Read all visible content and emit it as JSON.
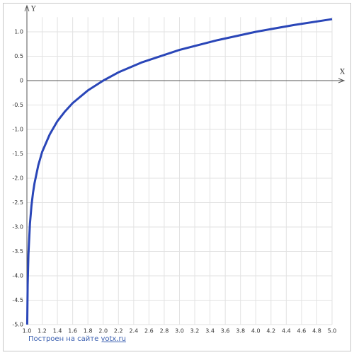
{
  "chart_data": {
    "type": "line",
    "x_label": "X",
    "y_label": "Y",
    "x": [
      1.0041,
      1.01,
      1.02,
      1.04,
      1.06,
      1.08,
      1.1,
      1.15,
      1.2,
      1.3,
      1.4,
      1.5,
      1.6,
      1.8,
      2.0,
      2.2,
      2.5,
      3.0,
      3.5,
      4.0,
      4.5,
      5.0
    ],
    "series": [
      {
        "color": "#2a46b8",
        "values": [
          -5.0,
          -4.19,
          -3.56,
          -2.93,
          -2.56,
          -2.3,
          -2.1,
          -1.73,
          -1.46,
          -1.1,
          -0.83,
          -0.63,
          -0.46,
          -0.2,
          0,
          0.17,
          0.37,
          0.63,
          0.83,
          1.0,
          1.14,
          1.26
        ]
      }
    ],
    "xlim": [
      1,
      5
    ],
    "ylim": [
      -5,
      1.3
    ],
    "xticks": [
      {
        "value": 1,
        "label": "1.0"
      },
      1.2,
      1.4,
      1.6,
      1.8,
      {
        "value": 2,
        "label": "2.0"
      },
      2.2,
      2.4,
      2.6,
      2.8,
      {
        "value": 3,
        "label": "3.0"
      },
      3.2,
      3.4,
      3.6,
      3.8,
      {
        "value": 4,
        "label": "4.0"
      },
      4.2,
      4.4,
      4.6,
      4.8,
      {
        "value": 5,
        "label": "5.0"
      }
    ],
    "yticks": [
      {
        "value": 1,
        "label": "1.0"
      },
      0.5,
      0,
      -0.5,
      {
        "value": -1,
        "label": "-1.0"
      },
      -1.5,
      {
        "value": -2,
        "label": "-2.0"
      },
      -2.5,
      {
        "value": -3,
        "label": "-3.0"
      },
      -3.5,
      {
        "value": -4,
        "label": "-4.0"
      },
      -4.5,
      {
        "value": -5,
        "label": "-5.0"
      }
    ],
    "grid": true
  },
  "footer": {
    "text": "Построен на сайте",
    "link": "yotx.ru"
  }
}
